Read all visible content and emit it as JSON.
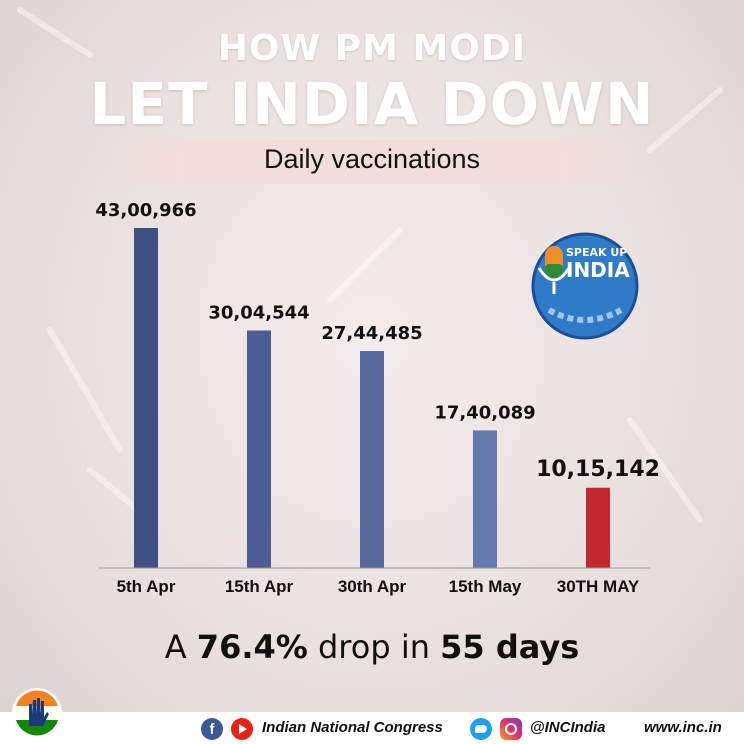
{
  "header": {
    "line1": "HOW PM MODI",
    "line2": "LET INDIA DOWN",
    "subtitle": "Daily vaccinations"
  },
  "badge": {
    "top_text": "SPEAK UP",
    "main_text": "INDIA",
    "icon": "microphone-icon"
  },
  "chart_data": {
    "type": "bar",
    "title": "Daily vaccinations",
    "categories": [
      "5th Apr",
      "15th Apr",
      "30th Apr",
      "15th May",
      "30TH MAY"
    ],
    "values": [
      4300966,
      3004544,
      2744485,
      1740089,
      1015142
    ],
    "labels": [
      "43,00,966",
      "30,04,544",
      "27,44,485",
      "17,40,089",
      "10,15,142"
    ],
    "colors": [
      "#3f5083",
      "#4c5d91",
      "#56679a",
      "#6479ad",
      "#c1272d"
    ],
    "highlight_index": 4,
    "ylim": [
      0,
      4300966
    ],
    "grid": false
  },
  "summary": {
    "prefix": "A ",
    "percent": "76.4%",
    "middle": " drop in ",
    "days": "55 days"
  },
  "footer": {
    "organization": "Indian National Congress",
    "handle": "@INCIndia",
    "website": "www.inc.in",
    "icons": [
      "facebook-icon",
      "youtube-icon",
      "twitter-icon",
      "instagram-icon"
    ]
  }
}
